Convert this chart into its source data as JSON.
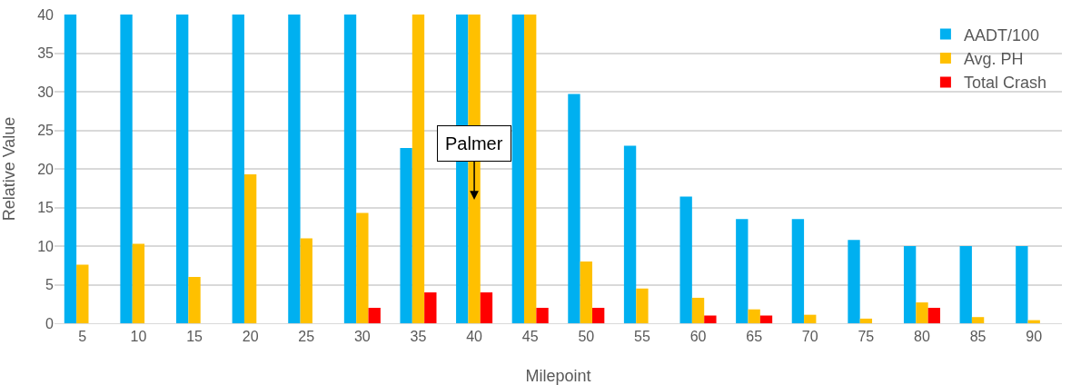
{
  "chart_data": {
    "type": "bar",
    "xlabel": "Milepoint",
    "ylabel": "Relative Value",
    "categories": [
      "5",
      "10",
      "15",
      "20",
      "25",
      "30",
      "35",
      "40",
      "45",
      "50",
      "55",
      "60",
      "65",
      "70",
      "75",
      "80",
      "85",
      "90"
    ],
    "series": [
      {
        "name": "AADT/100",
        "color": "#00b0f0",
        "values": [
          40,
          40,
          40,
          40,
          40,
          40,
          22.7,
          40,
          40,
          29.7,
          23,
          16.4,
          13.5,
          13.5,
          10.8,
          10,
          10,
          10
        ]
      },
      {
        "name": "Avg. PH",
        "color": "#ffc000",
        "values": [
          7.6,
          10.3,
          6,
          19.3,
          11,
          14.3,
          40,
          40,
          40,
          8,
          4.5,
          3.3,
          1.8,
          1.1,
          0.6,
          2.7,
          0.8,
          0.4
        ]
      },
      {
        "name": "Total Crash",
        "color": "#ff0000",
        "values": [
          null,
          null,
          null,
          null,
          null,
          2,
          4,
          4,
          2,
          2,
          0,
          1,
          1,
          0,
          0,
          2,
          0,
          0
        ]
      }
    ],
    "ylim": [
      0,
      40
    ],
    "yticks": [
      0,
      5,
      10,
      15,
      20,
      25,
      30,
      35,
      40
    ],
    "grid": "y",
    "legend": "top right",
    "annotations": [
      "Palmer"
    ]
  }
}
